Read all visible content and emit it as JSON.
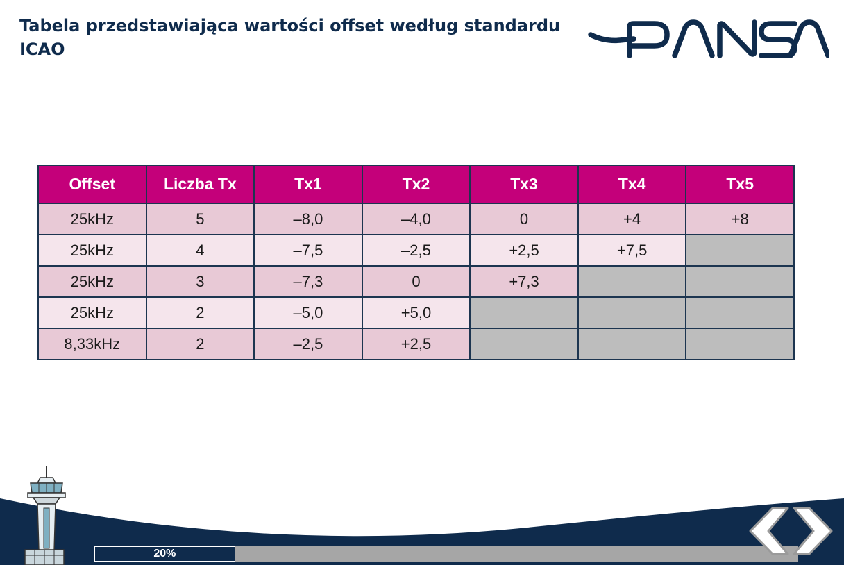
{
  "header": {
    "title": "Tabela przedstawiająca wartości offset według standardu ICAO",
    "logo_text": "PANSA"
  },
  "table": {
    "columns": [
      "Offset",
      "Liczba Tx",
      "Tx1",
      "Tx2",
      "Tx3",
      "Tx4",
      "Tx5"
    ],
    "rows": [
      [
        "25kHz",
        "5",
        "–8,0",
        "–4,0",
        "0",
        "+4",
        "+8"
      ],
      [
        "25kHz",
        "4",
        "–7,5",
        "–2,5",
        "+2,5",
        "+7,5",
        ""
      ],
      [
        "25kHz",
        "3",
        "–7,3",
        "0",
        "+7,3",
        "",
        ""
      ],
      [
        "25kHz",
        "2",
        "–5,0",
        "+5,0",
        "",
        "",
        ""
      ],
      [
        "8,33kHz",
        "2",
        "–2,5",
        "+2,5",
        "",
        "",
        ""
      ]
    ]
  },
  "progress": {
    "label": "20%",
    "value": 0.2
  },
  "navigation": {
    "prev_icon": "chevron-left-icon",
    "next_icon": "chevron-right-icon"
  },
  "colors": {
    "header_bg": "#c4007a",
    "row_odd": "#e8c9d6",
    "row_even": "#f5e5ec",
    "empty_cell": "#bdbdbd",
    "navy": "#0f2b4c"
  }
}
